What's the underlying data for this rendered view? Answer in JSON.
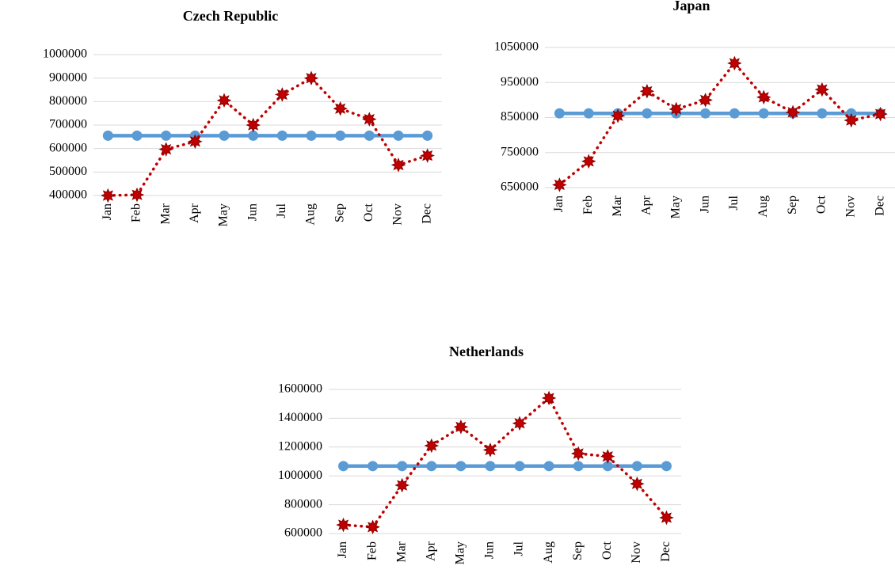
{
  "chart_data": [
    {
      "type": "line",
      "title": "Czech Republic",
      "categories": [
        "Jan",
        "Feb",
        "Mar",
        "Apr",
        "May",
        "Jun",
        "Jul",
        "Aug",
        "Sep",
        "Oct",
        "Nov",
        "Dec"
      ],
      "ylim": [
        400000,
        1000000
      ],
      "yticks": [
        400000,
        500000,
        600000,
        700000,
        800000,
        900000,
        1000000
      ],
      "grid": true,
      "series": [
        {
          "color": "#5b9bd5",
          "line_style": "solid",
          "marker": "circle",
          "values": [
            655000,
            655000,
            655000,
            655000,
            655000,
            655000,
            655000,
            655000,
            655000,
            655000,
            655000,
            655000
          ]
        },
        {
          "color": "#c00000",
          "line_style": "dotted",
          "marker": "star",
          "values": [
            400000,
            403000,
            597000,
            630000,
            805000,
            700000,
            830000,
            900000,
            770000,
            725000,
            530000,
            570000
          ]
        }
      ]
    },
    {
      "type": "line",
      "title": "Japan",
      "categories": [
        "Jan",
        "Feb",
        "Mar",
        "Apr",
        "May",
        "Jun",
        "Jul",
        "Aug",
        "Sep",
        "Oct",
        "Nov",
        "Dec"
      ],
      "ylim": [
        650000,
        1050000
      ],
      "yticks": [
        650000,
        750000,
        850000,
        950000,
        1050000
      ],
      "grid": true,
      "series": [
        {
          "color": "#5b9bd5",
          "line_style": "solid",
          "marker": "circle",
          "values": [
            862000,
            862000,
            862000,
            862000,
            862000,
            862000,
            862000,
            862000,
            862000,
            862000,
            862000,
            862000
          ]
        },
        {
          "color": "#c00000",
          "line_style": "dotted",
          "marker": "star",
          "values": [
            658000,
            725000,
            855000,
            925000,
            874000,
            900000,
            1005000,
            908000,
            865000,
            930000,
            842000,
            860000
          ]
        }
      ]
    },
    {
      "type": "line",
      "title": "Netherlands",
      "categories": [
        "Jan",
        "Feb",
        "Mar",
        "Apr",
        "May",
        "Jun",
        "Jul",
        "Aug",
        "Sep",
        "Oct",
        "Nov",
        "Dec"
      ],
      "ylim": [
        600000,
        1600000
      ],
      "yticks": [
        600000,
        800000,
        1000000,
        1200000,
        1400000,
        1600000
      ],
      "grid": true,
      "series": [
        {
          "color": "#5b9bd5",
          "line_style": "solid",
          "marker": "circle",
          "values": [
            1068000,
            1068000,
            1068000,
            1068000,
            1068000,
            1068000,
            1068000,
            1068000,
            1068000,
            1068000,
            1068000,
            1068000
          ]
        },
        {
          "color": "#c00000",
          "line_style": "dotted",
          "marker": "star",
          "values": [
            660000,
            645000,
            935000,
            1210000,
            1340000,
            1180000,
            1365000,
            1540000,
            1155000,
            1135000,
            945000,
            710000
          ]
        }
      ]
    }
  ]
}
